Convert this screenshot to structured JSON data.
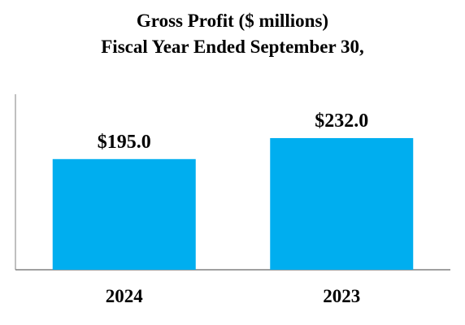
{
  "chart_data": {
    "type": "bar",
    "title": "Gross Profit ($ millions)",
    "subtitle": "Fiscal Year Ended September 30,",
    "categories": [
      "2024",
      "2023"
    ],
    "values": [
      195.0,
      232.0
    ],
    "data_labels": [
      "$195.0",
      "$232.0"
    ],
    "xlabel": "",
    "ylabel": "",
    "ylim": [
      0,
      325
    ],
    "grid": false,
    "bar_color": "#00aeef",
    "axis_color": "#808080"
  }
}
